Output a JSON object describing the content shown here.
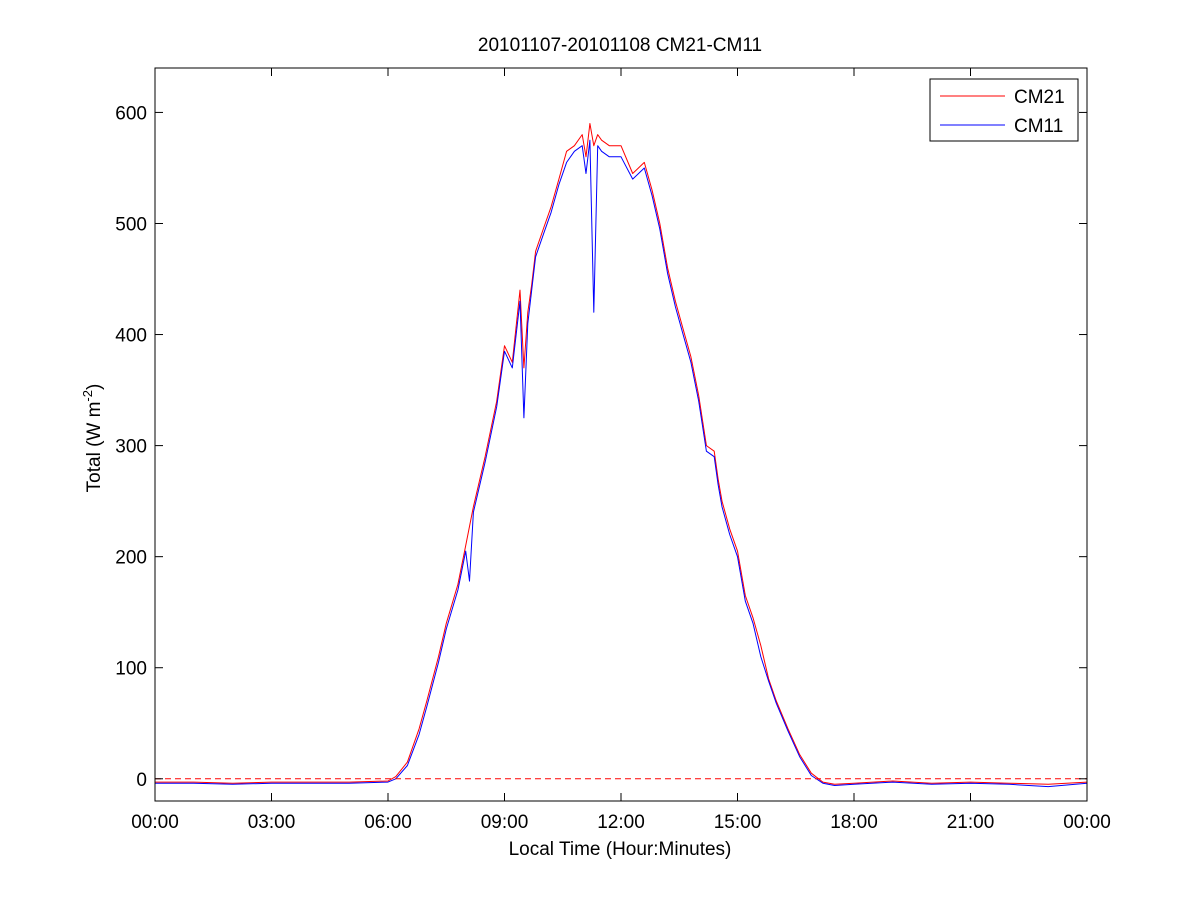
{
  "chart_data": {
    "type": "line",
    "title": "20101107-20101108 CM21-CM11",
    "xlabel": "Local Time (Hour:Minutes)",
    "ylabel": "Total (W m-2)",
    "ylabel_parts": {
      "base": "Total (W m",
      "sup": "-2",
      "tail": ")"
    },
    "x_unit": "hours",
    "xlim": [
      0,
      24
    ],
    "ylim": [
      -20,
      640
    ],
    "xticks": [
      {
        "value": 0,
        "label": "00:00"
      },
      {
        "value": 3,
        "label": "03:00"
      },
      {
        "value": 6,
        "label": "06:00"
      },
      {
        "value": 9,
        "label": "09:00"
      },
      {
        "value": 12,
        "label": "12:00"
      },
      {
        "value": 15,
        "label": "15:00"
      },
      {
        "value": 18,
        "label": "18:00"
      },
      {
        "value": 21,
        "label": "21:00"
      },
      {
        "value": 24,
        "label": "00:00"
      }
    ],
    "yticks": [
      {
        "value": 0,
        "label": "0"
      },
      {
        "value": 100,
        "label": "100"
      },
      {
        "value": 200,
        "label": "200"
      },
      {
        "value": 300,
        "label": "300"
      },
      {
        "value": 400,
        "label": "400"
      },
      {
        "value": 500,
        "label": "500"
      },
      {
        "value": 600,
        "label": "600"
      }
    ],
    "grid": false,
    "legend_position": "top-right",
    "reference_line": {
      "y": 0,
      "color": "#ff0000",
      "style": "dashed"
    },
    "series": [
      {
        "name": "CM21",
        "color": "#ff0000",
        "x": [
          0,
          1,
          2,
          3,
          4,
          5,
          6,
          6.2,
          6.5,
          6.8,
          7.0,
          7.3,
          7.5,
          7.8,
          8.0,
          8.2,
          8.5,
          8.8,
          9.0,
          9.2,
          9.4,
          9.5,
          9.6,
          9.7,
          9.8,
          10.0,
          10.2,
          10.4,
          10.6,
          10.8,
          11.0,
          11.1,
          11.2,
          11.3,
          11.4,
          11.5,
          11.7,
          12.0,
          12.3,
          12.6,
          12.8,
          13.0,
          13.2,
          13.4,
          13.6,
          13.8,
          14.0,
          14.2,
          14.4,
          14.5,
          14.6,
          14.8,
          15.0,
          15.2,
          15.4,
          15.6,
          15.8,
          16.0,
          16.3,
          16.6,
          16.9,
          17.2,
          17.5,
          18.0,
          19.0,
          20.0,
          21.0,
          22.0,
          23.0,
          24.0
        ],
        "values": [
          -3,
          -3,
          -4,
          -3,
          -3,
          -3,
          -2,
          2,
          15,
          45,
          70,
          110,
          140,
          175,
          210,
          245,
          290,
          340,
          390,
          375,
          440,
          370,
          420,
          445,
          475,
          495,
          515,
          540,
          565,
          570,
          580,
          560,
          590,
          570,
          580,
          575,
          570,
          570,
          545,
          555,
          530,
          500,
          460,
          430,
          405,
          380,
          345,
          300,
          295,
          270,
          250,
          225,
          205,
          165,
          145,
          120,
          90,
          70,
          45,
          22,
          5,
          -3,
          -5,
          -4,
          -2,
          -4,
          -3,
          -4,
          -5,
          -3
        ]
      },
      {
        "name": "CM11",
        "color": "#0000ff",
        "x": [
          0,
          1,
          2,
          3,
          4,
          5,
          6,
          6.2,
          6.5,
          6.8,
          7.0,
          7.3,
          7.5,
          7.8,
          8.0,
          8.1,
          8.2,
          8.5,
          8.8,
          9.0,
          9.2,
          9.4,
          9.5,
          9.6,
          9.7,
          9.8,
          10.0,
          10.2,
          10.4,
          10.6,
          10.8,
          11.0,
          11.1,
          11.2,
          11.3,
          11.4,
          11.5,
          11.7,
          12.0,
          12.3,
          12.6,
          12.8,
          13.0,
          13.2,
          13.4,
          13.6,
          13.8,
          14.0,
          14.2,
          14.4,
          14.5,
          14.6,
          14.8,
          15.0,
          15.2,
          15.4,
          15.6,
          15.8,
          16.0,
          16.3,
          16.6,
          16.9,
          17.2,
          17.5,
          18.0,
          19.0,
          20.0,
          21.0,
          22.0,
          23.0,
          24.0
        ],
        "values": [
          -4,
          -4,
          -5,
          -4,
          -4,
          -4,
          -3,
          0,
          12,
          40,
          65,
          105,
          135,
          170,
          205,
          178,
          240,
          285,
          335,
          385,
          370,
          430,
          325,
          410,
          440,
          470,
          490,
          510,
          535,
          555,
          565,
          570,
          545,
          575,
          420,
          570,
          565,
          560,
          560,
          540,
          550,
          525,
          495,
          455,
          425,
          400,
          375,
          340,
          295,
          290,
          265,
          245,
          220,
          200,
          160,
          140,
          110,
          88,
          68,
          43,
          20,
          3,
          -4,
          -6,
          -5,
          -3,
          -5,
          -4,
          -5,
          -7,
          -4
        ]
      }
    ]
  }
}
